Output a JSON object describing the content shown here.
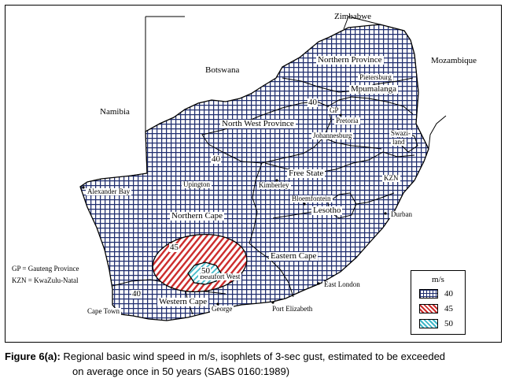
{
  "figure": {
    "caption_label": "Figure 6(a):",
    "caption_line1": "Regional basic wind speed in m/s, isophlets of 3-sec gust, estimated to be exceeded",
    "caption_line2": "on average once in 50 years (SABS 0160:1989)"
  },
  "countries": {
    "zimbabwe": "Zimbabwe",
    "botswana": "Botswana",
    "namibia": "Namibia",
    "mozambique": "Mozambique"
  },
  "provinces": {
    "northern_province": "Northern Province",
    "mpumalanga": "Mpumalanga",
    "north_west": "North West Province",
    "free_state": "Free State",
    "lesotho": "Lesotho",
    "kzn": "KZN",
    "northern_cape": "Northern Cape",
    "eastern_cape": "Eastern Cape",
    "western_cape": "Western Cape",
    "gp": "GP",
    "swaziland_line1": "Swazi-",
    "swaziland_line2": "land"
  },
  "cities": {
    "pietersburg": "Pietersburg",
    "pretoria": "Pretoria",
    "johannesburg": "Johannesburg",
    "kimberley": "Kimberley",
    "bloemfontein": "Bloemfontein",
    "durban": "Durban",
    "upington": "Upington",
    "alexander_bay": "Alexander Bay",
    "beaufort_west": "Beaufort West",
    "east_london": "East London",
    "cape_town": "Cape Town",
    "george": "George",
    "port_elizabeth": "Port Elizabeth"
  },
  "abbreviations": {
    "gp": "GP = Gauteng Province",
    "kzn": "KZN = KwaZulu-Natal"
  },
  "isophlets": {
    "iso_40_north": "40",
    "iso_40_west": "40",
    "iso_40_south": "40",
    "iso_45": "45",
    "iso_50": "50"
  },
  "legend": {
    "unit": "m/s",
    "items": [
      {
        "value": "40",
        "pattern": "blue-grid",
        "color": "#1f2d6e"
      },
      {
        "value": "45",
        "pattern": "red-hatch",
        "color": "#cc2a2a"
      },
      {
        "value": "50",
        "pattern": "cyan-hatch",
        "color": "#3fb8c8"
      }
    ]
  },
  "colors": {
    "grid": "#1f2d6e",
    "zone45": "#cc2a2a",
    "zone50": "#3fb8c8"
  }
}
